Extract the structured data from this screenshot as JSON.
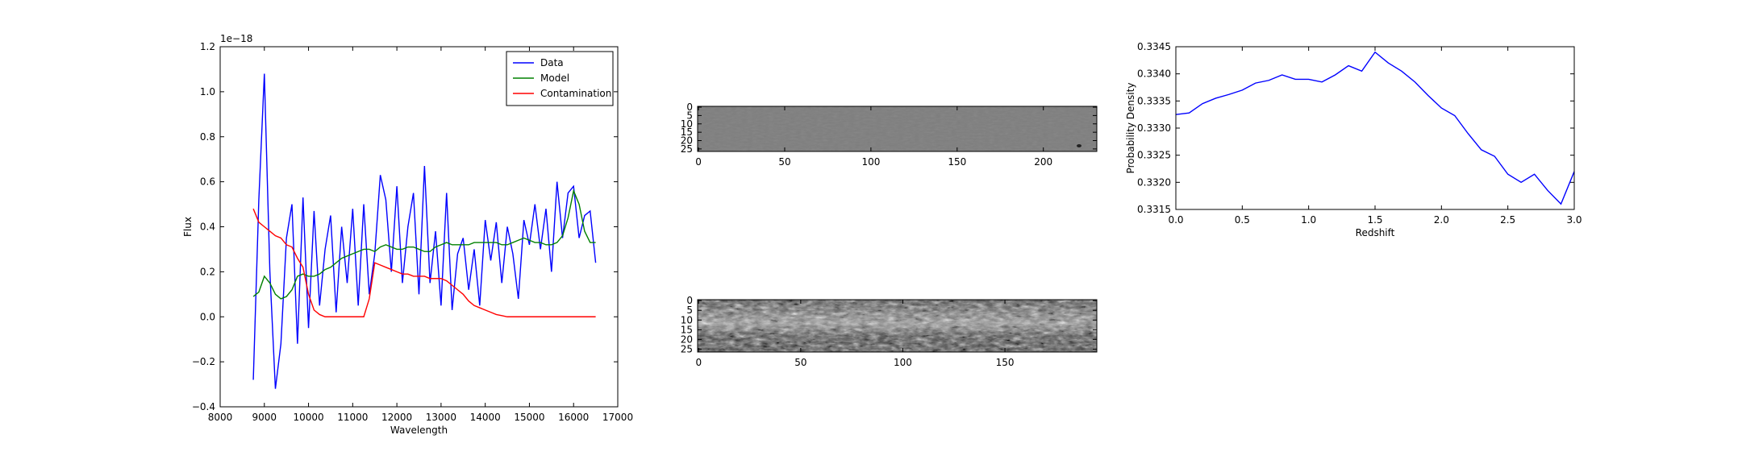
{
  "chart_data": [
    {
      "type": "line",
      "x_label": "Wavelength",
      "y_label": "Flux",
      "y_offset_label": "1e−18",
      "legend": "upper right",
      "xlim": [
        8000,
        17000
      ],
      "xticks": [
        8000,
        9000,
        10000,
        11000,
        12000,
        13000,
        14000,
        15000,
        16000,
        17000
      ],
      "ylim": [
        -0.4,
        1.2
      ],
      "yticks": [
        {
          "value": -0.4,
          "label": "−0.4"
        },
        {
          "value": -0.2,
          "label": "−0.2"
        },
        {
          "value": 0,
          "label": "0.0"
        },
        0.2,
        0.4,
        0.6,
        0.8,
        {
          "value": 1,
          "label": "1.0"
        },
        1.2
      ],
      "x": [
        8750,
        8875,
        9000,
        9125,
        9250,
        9375,
        9500,
        9625,
        9750,
        9875,
        10000,
        10125,
        10250,
        10375,
        10500,
        10625,
        10750,
        10875,
        11000,
        11125,
        11250,
        11375,
        11500,
        11625,
        11750,
        11875,
        12000,
        12125,
        12250,
        12375,
        12500,
        12625,
        12750,
        12875,
        13000,
        13125,
        13250,
        13375,
        13500,
        13625,
        13750,
        13875,
        14000,
        14125,
        14250,
        14375,
        14500,
        14625,
        14750,
        14875,
        15000,
        15125,
        15250,
        15375,
        15500,
        15625,
        15750,
        15875,
        16000,
        16125,
        16250,
        16375,
        16500
      ],
      "series": [
        {
          "name": "Data",
          "color": "#0000ff",
          "values": [
            -0.28,
            0.52,
            1.08,
            0.2,
            -0.32,
            -0.12,
            0.35,
            0.5,
            -0.12,
            0.53,
            -0.05,
            0.47,
            0.05,
            0.3,
            0.45,
            0.02,
            0.4,
            0.15,
            0.48,
            0.05,
            0.5,
            0.1,
            0.28,
            0.63,
            0.52,
            0.2,
            0.58,
            0.15,
            0.4,
            0.55,
            0.1,
            0.67,
            0.15,
            0.38,
            0.05,
            0.55,
            0.03,
            0.28,
            0.35,
            0.12,
            0.3,
            0.05,
            0.43,
            0.25,
            0.42,
            0.15,
            0.4,
            0.28,
            0.08,
            0.43,
            0.32,
            0.5,
            0.3,
            0.48,
            0.2,
            0.6,
            0.35,
            0.55,
            0.58,
            0.35,
            0.45,
            0.47,
            0.24
          ]
        },
        {
          "name": "Model",
          "color": "#008000",
          "values": [
            0.09,
            0.11,
            0.18,
            0.15,
            0.1,
            0.08,
            0.09,
            0.12,
            0.18,
            0.19,
            0.18,
            0.18,
            0.19,
            0.21,
            0.22,
            0.24,
            0.26,
            0.27,
            0.28,
            0.29,
            0.3,
            0.3,
            0.29,
            0.31,
            0.32,
            0.31,
            0.3,
            0.3,
            0.31,
            0.31,
            0.3,
            0.29,
            0.29,
            0.31,
            0.32,
            0.33,
            0.32,
            0.32,
            0.32,
            0.32,
            0.33,
            0.33,
            0.33,
            0.33,
            0.33,
            0.32,
            0.32,
            0.33,
            0.34,
            0.35,
            0.34,
            0.33,
            0.33,
            0.32,
            0.32,
            0.33,
            0.36,
            0.44,
            0.56,
            0.5,
            0.38,
            0.33,
            0.33
          ]
        },
        {
          "name": "Contamination",
          "color": "#ff0000",
          "values": [
            0.48,
            0.42,
            0.4,
            0.38,
            0.36,
            0.35,
            0.32,
            0.31,
            0.26,
            0.22,
            0.1,
            0.03,
            0.01,
            0,
            0,
            0,
            0,
            0,
            0,
            0,
            0,
            0.08,
            0.24,
            0.23,
            0.22,
            0.21,
            0.2,
            0.19,
            0.19,
            0.18,
            0.18,
            0.18,
            0.17,
            0.17,
            0.17,
            0.16,
            0.14,
            0.12,
            0.1,
            0.07,
            0.05,
            0.04,
            0.03,
            0.02,
            0.01,
            0.005,
            0,
            0,
            0,
            0,
            0,
            0,
            0,
            0,
            0,
            0,
            0,
            0,
            0,
            0,
            0,
            0,
            0
          ]
        }
      ]
    },
    {
      "type": "image",
      "xlim": [
        -0.5,
        231
      ],
      "xticks": [
        0,
        50,
        100,
        150,
        200
      ],
      "ylim": [
        26.5,
        -0.5
      ],
      "yticks": [
        0,
        5,
        10,
        15,
        20,
        25
      ]
    },
    {
      "type": "image",
      "xlim": [
        -0.5,
        195
      ],
      "xticks": [
        0,
        50,
        100,
        150
      ],
      "ylim": [
        26.5,
        -0.5
      ],
      "yticks": [
        0,
        5,
        10,
        15,
        20,
        25
      ]
    },
    {
      "type": "line",
      "x_label": "Redshift",
      "y_label": "Probability Density",
      "xlim": [
        0,
        3
      ],
      "xticks": [
        {
          "value": 0,
          "label": "0.0"
        },
        0.5,
        {
          "value": 1,
          "label": "1.0"
        },
        1.5,
        {
          "value": 2,
          "label": "2.0"
        },
        2.5,
        {
          "value": 3,
          "label": "3.0"
        }
      ],
      "ylim": [
        0.3315,
        0.3345
      ],
      "yticks": [
        0.3315,
        {
          "value": 0.332,
          "label": "0.3320"
        },
        0.3325,
        {
          "value": 0.333,
          "label": "0.3330"
        },
        0.3335,
        {
          "value": 0.334,
          "label": "0.3340"
        },
        0.3345
      ],
      "x": [
        0,
        0.1,
        0.2,
        0.3,
        0.4,
        0.5,
        0.6,
        0.7,
        0.8,
        0.9,
        1,
        1.1,
        1.2,
        1.3,
        1.4,
        1.5,
        1.6,
        1.7,
        1.8,
        1.9,
        2,
        2.1,
        2.2,
        2.3,
        2.4,
        2.5,
        2.6,
        2.7,
        2.8,
        2.9,
        3
      ],
      "series": [
        {
          "color": "#0000ff",
          "values": [
            0.33325,
            0.33328,
            0.33345,
            0.33355,
            0.33362,
            0.3337,
            0.33383,
            0.33388,
            0.33398,
            0.3339,
            0.3339,
            0.33385,
            0.33398,
            0.33415,
            0.33405,
            0.3344,
            0.3342,
            0.33405,
            0.33385,
            0.3336,
            0.33337,
            0.33323,
            0.3329,
            0.3326,
            0.33248,
            0.33215,
            0.332,
            0.33215,
            0.33185,
            0.3316,
            0.3322
          ]
        }
      ]
    }
  ]
}
